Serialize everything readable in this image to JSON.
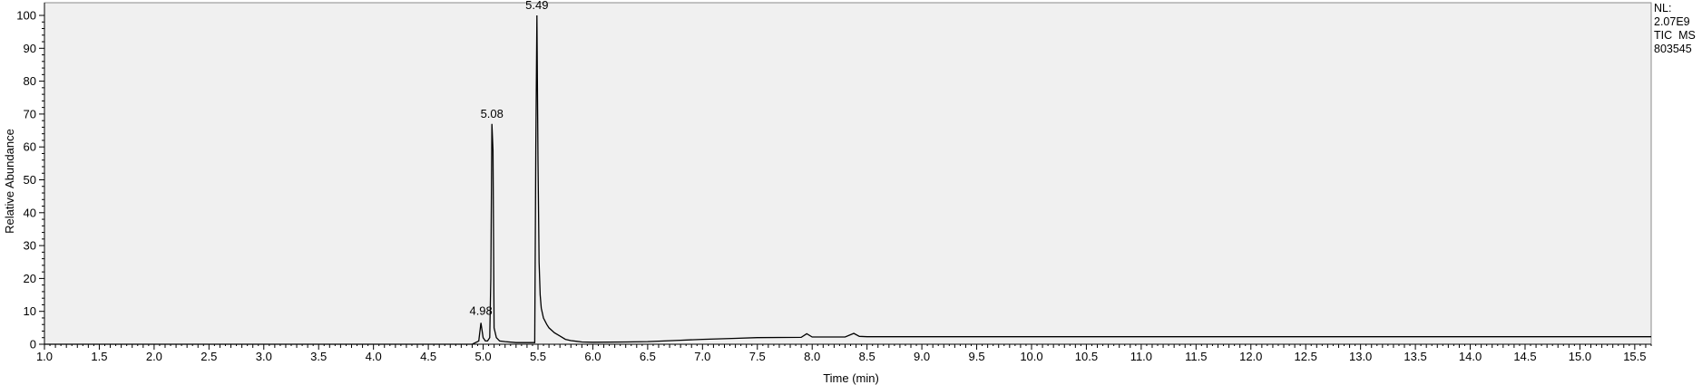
{
  "info": {
    "nl_label": "NL:",
    "nl_value": "2.07E9",
    "scan_filter": "TIC  MS",
    "sample_id": "803545"
  },
  "chart_data": {
    "type": "line",
    "xlabel": "Time (min)",
    "ylabel": "Relative Abundance",
    "xlim": [
      1.0,
      15.65
    ],
    "ylim": [
      0,
      100
    ],
    "x_ticks": [
      "1.0",
      "1.5",
      "2.0",
      "2.5",
      "3.0",
      "3.5",
      "4.0",
      "4.5",
      "5.0",
      "5.5",
      "6.0",
      "6.5",
      "7.0",
      "7.5",
      "8.0",
      "8.5",
      "9.0",
      "9.5",
      "10.0",
      "10.5",
      "11.0",
      "11.5",
      "12.0",
      "12.5",
      "13.0",
      "13.5",
      "14.0",
      "14.5",
      "15.0",
      "15.5"
    ],
    "y_ticks": [
      "0",
      "10",
      "20",
      "30",
      "40",
      "50",
      "60",
      "70",
      "80",
      "90",
      "100"
    ],
    "grid": false,
    "background": "#f0f0f0",
    "line_color": "#000000",
    "peak_labels": [
      {
        "x": 4.98,
        "y": 7,
        "label": "4.98"
      },
      {
        "x": 5.08,
        "y": 67,
        "label": "5.08"
      },
      {
        "x": 5.49,
        "y": 100,
        "label": "5.49"
      }
    ],
    "series": [
      {
        "x": [
          1.0,
          4.9,
          4.96,
          4.98,
          5.0,
          5.02,
          5.04,
          5.06,
          5.07,
          5.08,
          5.09,
          5.1,
          5.12,
          5.15,
          5.2,
          5.3,
          5.4,
          5.47,
          5.48,
          5.49,
          5.5,
          5.51,
          5.52,
          5.53,
          5.55,
          5.58,
          5.6,
          5.65,
          5.7,
          5.75,
          5.8,
          5.9,
          6.0,
          6.3,
          6.5,
          6.8,
          7.0,
          7.3,
          7.5,
          7.9,
          7.95,
          8.0,
          8.3,
          8.38,
          8.43,
          8.5,
          9.0,
          10.0,
          12.0,
          15.65
        ],
        "y": [
          0,
          0,
          1,
          6.5,
          2,
          1,
          1,
          2,
          20,
          67,
          59,
          5,
          2,
          1,
          0.8,
          0.5,
          0.5,
          0.5,
          60,
          100,
          56,
          25,
          15,
          11,
          8,
          6,
          5,
          3.5,
          2.5,
          1.5,
          1.1,
          0.7,
          0.6,
          0.7,
          0.8,
          1.2,
          1.5,
          1.8,
          2,
          2.1,
          3.2,
          2.2,
          2.2,
          3.3,
          2.4,
          2.3,
          2.3,
          2.3,
          2.3,
          2.3
        ]
      }
    ]
  }
}
